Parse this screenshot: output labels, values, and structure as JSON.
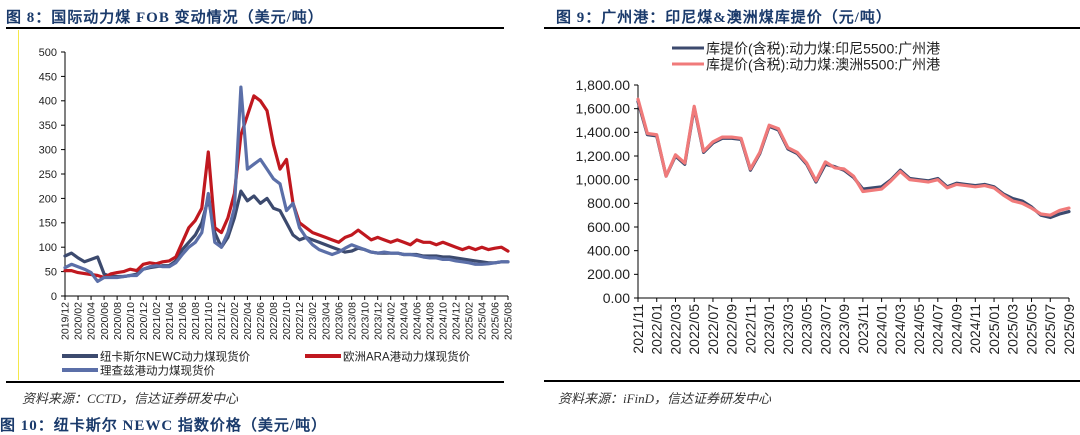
{
  "left_figure": {
    "title": "图 8：国际动力煤 FOB 变动情况（美元/吨）",
    "source": "资料来源：CCTD，信达证券研发中心"
  },
  "right_figure": {
    "title": "图 9：广州港：印尼煤&澳洲煤库提价（元/吨）",
    "source": "资料来源：iFinD，信达证券研发中心"
  },
  "next_figure": {
    "title": "图 10：纽卡斯尔 NEWC 指数价格（美元/吨）"
  },
  "chart_data": [
    {
      "type": "line",
      "title": "国际动力煤 FOB 变动情况（美元/吨）",
      "xlabel": "",
      "ylabel": "",
      "ylim": [
        0,
        500
      ],
      "yticks": [
        0,
        50,
        100,
        150,
        200,
        250,
        300,
        350,
        400,
        450,
        500
      ],
      "x_tick_labels": [
        "2019/12",
        "2020/02",
        "2020/04",
        "2020/06",
        "2020/08",
        "2020/10",
        "2020/12",
        "2021/02",
        "2021/04",
        "2021/06",
        "2021/08",
        "2021/10",
        "2021/12",
        "2022/02",
        "2022/04",
        "2022/06",
        "2022/08",
        "2022/10",
        "2022/12",
        "2023/02",
        "2023/04",
        "2023/06",
        "2023/08",
        "2023/10",
        "2023/12",
        "2024/02",
        "2024/04",
        "2024/06",
        "2024/08",
        "2024/10",
        "2024/12",
        "2025/02",
        "2025/04",
        "2025/06",
        "2025/08"
      ],
      "grid": false,
      "legend_position": "bottom",
      "x": [
        "2019/12",
        "2020/01",
        "2020/02",
        "2020/03",
        "2020/04",
        "2020/05",
        "2020/06",
        "2020/07",
        "2020/08",
        "2020/09",
        "2020/10",
        "2020/11",
        "2020/12",
        "2021/01",
        "2021/02",
        "2021/03",
        "2021/04",
        "2021/05",
        "2021/06",
        "2021/07",
        "2021/08",
        "2021/09",
        "2021/10",
        "2021/11",
        "2021/12",
        "2022/01",
        "2022/02",
        "2022/03",
        "2022/04",
        "2022/05",
        "2022/06",
        "2022/07",
        "2022/08",
        "2022/09",
        "2022/10",
        "2022/11",
        "2022/12",
        "2023/01",
        "2023/02",
        "2023/03",
        "2023/04",
        "2023/05",
        "2023/06",
        "2023/07",
        "2023/08",
        "2023/09",
        "2023/10",
        "2023/11",
        "2023/12",
        "2024/01",
        "2024/02",
        "2024/03",
        "2024/04",
        "2024/05",
        "2024/06",
        "2024/07",
        "2024/08",
        "2024/09",
        "2024/10",
        "2024/11",
        "2024/12",
        "2025/01",
        "2025/02",
        "2025/03",
        "2025/04",
        "2025/05",
        "2025/06",
        "2025/07",
        "2025/08"
      ],
      "series": [
        {
          "name": "纽卡斯尔NEWC动力煤现货价",
          "color": "#3c4a6e",
          "values": [
            82,
            88,
            78,
            70,
            75,
            80,
            45,
            40,
            40,
            40,
            42,
            45,
            55,
            58,
            60,
            62,
            62,
            72,
            95,
            110,
            125,
            150,
            200,
            130,
            100,
            120,
            160,
            215,
            195,
            205,
            190,
            200,
            180,
            175,
            150,
            125,
            115,
            120,
            115,
            110,
            105,
            100,
            95,
            90,
            92,
            98,
            95,
            90,
            88,
            88,
            88,
            88,
            85,
            85,
            85,
            82,
            82,
            82,
            80,
            80,
            78,
            76,
            74,
            72,
            70,
            68,
            68,
            70,
            70
          ]
        },
        {
          "name": "欧洲ARA港动力煤现货价",
          "color": "#c0181f",
          "values": [
            52,
            52,
            48,
            46,
            44,
            42,
            38,
            45,
            48,
            50,
            55,
            52,
            65,
            68,
            66,
            70,
            72,
            80,
            110,
            140,
            155,
            180,
            295,
            140,
            130,
            160,
            210,
            330,
            370,
            410,
            400,
            380,
            310,
            260,
            280,
            190,
            150,
            140,
            130,
            125,
            120,
            115,
            110,
            120,
            125,
            135,
            125,
            115,
            120,
            115,
            110,
            115,
            110,
            105,
            115,
            110,
            110,
            105,
            110,
            105,
            100,
            95,
            100,
            95,
            100,
            95,
            98,
            100,
            92
          ]
        },
        {
          "name": "理查兹港动力煤现货价",
          "color": "#5b6fa8",
          "values": [
            58,
            65,
            60,
            55,
            48,
            30,
            38,
            38,
            38,
            40,
            42,
            42,
            55,
            60,
            62,
            60,
            60,
            68,
            85,
            100,
            110,
            130,
            210,
            110,
            100,
            130,
            180,
            428,
            260,
            270,
            280,
            260,
            240,
            230,
            175,
            190,
            140,
            120,
            105,
            95,
            90,
            85,
            90,
            98,
            105,
            100,
            95,
            90,
            88,
            90,
            88,
            88,
            85,
            85,
            83,
            80,
            78,
            78,
            75,
            75,
            72,
            70,
            68,
            65,
            65,
            66,
            68,
            70,
            70
          ]
        }
      ]
    },
    {
      "type": "line",
      "title": "广州港：印尼煤&澳洲煤库提价（元/吨）",
      "xlabel": "",
      "ylabel": "",
      "ylim": [
        0,
        1800
      ],
      "yticks": [
        "0.00",
        "200.00",
        "400.00",
        "600.00",
        "800.00",
        "1,000.00",
        "1,200.00",
        "1,400.00",
        "1,600.00",
        "1,800.00"
      ],
      "x_tick_labels": [
        "2021/11",
        "2022/01",
        "2022/03",
        "2022/05",
        "2022/07",
        "2022/09",
        "2022/11",
        "2023/01",
        "2023/03",
        "2023/05",
        "2023/07",
        "2023/09",
        "2023/11",
        "2024/01",
        "2024/03",
        "2024/05",
        "2024/07",
        "2024/09",
        "2024/11",
        "2025/01",
        "2025/03",
        "2025/05",
        "2025/07",
        "2025/09"
      ],
      "grid": false,
      "legend_position": "top",
      "x": [
        "2021/11",
        "2021/12",
        "2022/01",
        "2022/02",
        "2022/03",
        "2022/04",
        "2022/05",
        "2022/06",
        "2022/07",
        "2022/08",
        "2022/09",
        "2022/10",
        "2022/11",
        "2022/12",
        "2023/01",
        "2023/02",
        "2023/03",
        "2023/04",
        "2023/05",
        "2023/06",
        "2023/07",
        "2023/08",
        "2023/09",
        "2023/10",
        "2023/11",
        "2023/12",
        "2024/01",
        "2024/02",
        "2024/03",
        "2024/04",
        "2024/05",
        "2024/06",
        "2024/07",
        "2024/08",
        "2024/09",
        "2024/10",
        "2024/11",
        "2024/12",
        "2025/01",
        "2025/02",
        "2025/03",
        "2025/04",
        "2025/05",
        "2025/06",
        "2025/07",
        "2025/08",
        "2025/09"
      ],
      "series": [
        {
          "name": "库提价(含税):动力煤:印尼5500:广州港",
          "color": "#3c4a6e",
          "values": [
            1660,
            1380,
            1370,
            1030,
            1200,
            1130,
            1610,
            1230,
            1310,
            1350,
            1350,
            1340,
            1080,
            1220,
            1450,
            1420,
            1260,
            1220,
            1130,
            980,
            1130,
            1110,
            1080,
            1020,
            920,
            930,
            940,
            1000,
            1080,
            1010,
            1000,
            990,
            1010,
            940,
            970,
            960,
            950,
            960,
            940,
            880,
            840,
            820,
            770,
            700,
            680,
            710,
            730
          ]
        },
        {
          "name": "库提价(含税):动力煤:澳洲5500:广州港",
          "color": "#f07a7a",
          "values": [
            1680,
            1390,
            1380,
            1030,
            1210,
            1140,
            1620,
            1240,
            1320,
            1360,
            1360,
            1350,
            1090,
            1230,
            1460,
            1430,
            1270,
            1230,
            1140,
            990,
            1150,
            1100,
            1090,
            1030,
            900,
            910,
            920,
            990,
            1070,
            1000,
            990,
            980,
            1000,
            930,
            960,
            950,
            940,
            950,
            930,
            870,
            820,
            800,
            760,
            710,
            700,
            740,
            760
          ]
        }
      ]
    }
  ]
}
